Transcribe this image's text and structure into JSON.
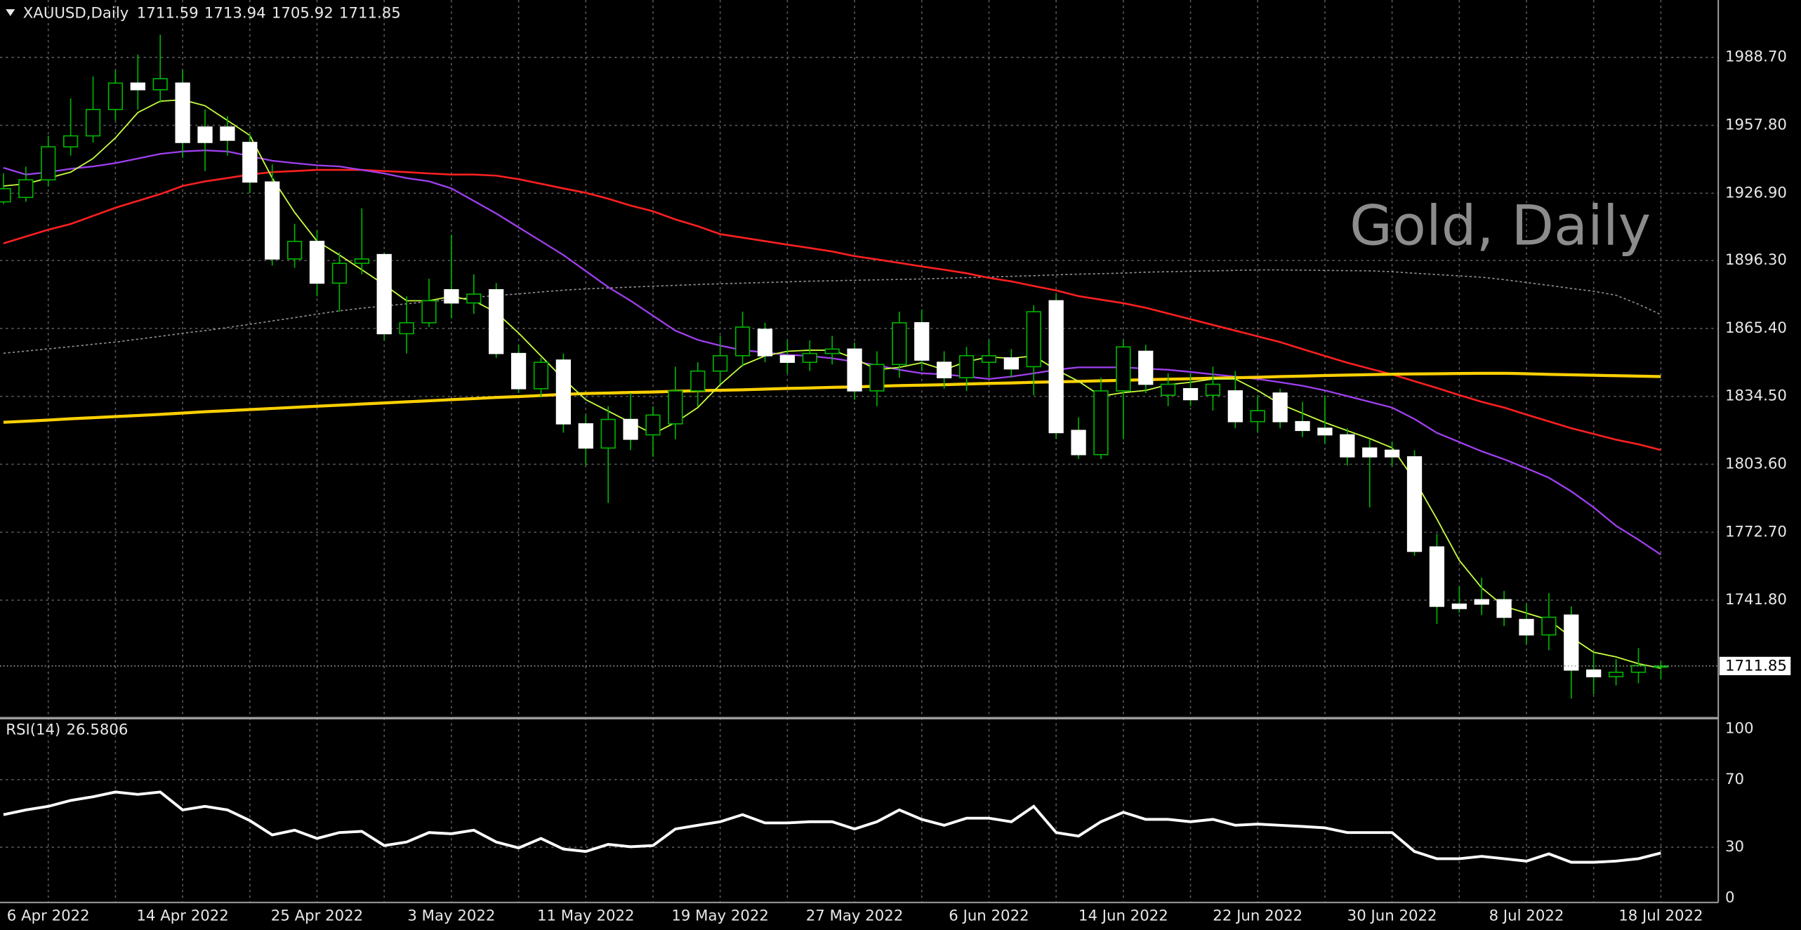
{
  "chart_data": [
    {
      "type": "candlestick",
      "symbol_label": "XAUUSD,Daily",
      "watermark": "Gold, Daily",
      "categories": [
        null,
        null,
        "6 Apr 2022",
        null,
        null,
        null,
        null,
        null,
        "14 Apr 2022",
        null,
        null,
        null,
        null,
        null,
        "25 Apr 2022",
        null,
        null,
        null,
        null,
        null,
        "3 May 2022",
        null,
        null,
        null,
        null,
        null,
        "11 May 2022",
        null,
        null,
        null,
        null,
        null,
        "19 May 2022",
        null,
        null,
        null,
        null,
        null,
        "27 May 2022",
        null,
        null,
        null,
        null,
        null,
        "6 Jun 2022",
        null,
        null,
        null,
        null,
        null,
        "14 Jun 2022",
        null,
        null,
        null,
        null,
        null,
        "22 Jun 2022",
        null,
        null,
        null,
        null,
        null,
        "30 Jun 2022",
        null,
        null,
        null,
        null,
        null,
        "8 Jul 2022",
        null,
        null,
        null,
        null,
        null,
        "18 Jul 2022"
      ],
      "open": [
        1923,
        1925,
        1933,
        1948,
        1953,
        1965,
        1977,
        1974,
        1977,
        1957,
        1957,
        1950,
        1932,
        1897,
        1905,
        1886,
        1895,
        1899,
        1863,
        1868,
        1883,
        1877,
        1883,
        1854,
        1838,
        1851,
        1822,
        1811,
        1824,
        1817,
        1822,
        1837,
        1846,
        1853,
        1865,
        1853,
        1850,
        1854,
        1856,
        1837,
        1849,
        1868,
        1850,
        1843,
        1850,
        1852,
        1848,
        1878,
        1819,
        1808,
        1837,
        1855,
        1835,
        1838,
        1835,
        1837,
        1823,
        1836,
        1823,
        1820,
        1817,
        1811,
        1810,
        1807,
        1766,
        1740,
        1742,
        1742,
        1733,
        1726,
        1735,
        1710,
        1707,
        1709,
        1711.59
      ],
      "high": [
        1936,
        1939,
        1953,
        1970,
        1980,
        1983,
        1990,
        1999,
        1983,
        1965,
        1962,
        1954,
        1940,
        1913,
        1910,
        1900,
        1920,
        1900,
        1880,
        1888,
        1908,
        1890,
        1886,
        1858,
        1852,
        1854,
        1826,
        1830,
        1836,
        1830,
        1848,
        1850,
        1862,
        1873,
        1868,
        1860,
        1860,
        1862,
        1859,
        1855,
        1873,
        1874,
        1855,
        1857,
        1860,
        1856,
        1876,
        1881,
        1825,
        1843,
        1860,
        1858,
        1845,
        1845,
        1848,
        1846,
        1835,
        1838,
        1832,
        1835,
        1820,
        1815,
        1814,
        1810,
        1772,
        1748,
        1752,
        1746,
        1740,
        1745,
        1739,
        1718,
        1715,
        1720,
        1713.94
      ],
      "low": [
        1922,
        1923,
        1930,
        1944,
        1950,
        1960,
        1965,
        1968,
        1943,
        1937,
        1944,
        1927,
        1894,
        1893,
        1880,
        1873,
        1890,
        1860,
        1854,
        1866,
        1870,
        1872,
        1852,
        1836,
        1834,
        1818,
        1803,
        1786,
        1810,
        1807,
        1815,
        1830,
        1840,
        1848,
        1850,
        1845,
        1846,
        1849,
        1833,
        1830,
        1843,
        1846,
        1838,
        1837,
        1843,
        1843,
        1835,
        1815,
        1806,
        1806,
        1815,
        1836,
        1830,
        1830,
        1828,
        1820,
        1818,
        1820,
        1816,
        1813,
        1803,
        1784,
        1803,
        1762,
        1731,
        1736,
        1735,
        1730,
        1722,
        1719,
        1697,
        1699,
        1703,
        1704,
        1705.92
      ],
      "close": [
        1929,
        1933,
        1948,
        1953,
        1965,
        1977,
        1974,
        1979,
        1950,
        1950,
        1951,
        1932,
        1897,
        1905,
        1886,
        1895,
        1897,
        1863,
        1868,
        1878,
        1877,
        1881,
        1854,
        1838,
        1850,
        1822,
        1811,
        1824,
        1815,
        1826,
        1837,
        1846,
        1853,
        1866,
        1853,
        1850,
        1854,
        1856,
        1837,
        1849,
        1868,
        1851,
        1843,
        1853,
        1853,
        1847,
        1873,
        1818,
        1808,
        1837,
        1857,
        1840,
        1840,
        1833,
        1840,
        1823,
        1828,
        1823,
        1819,
        1817,
        1807,
        1807,
        1807,
        1764,
        1739,
        1738,
        1740,
        1734,
        1726,
        1734,
        1710,
        1707,
        1709,
        1712,
        1711.85
      ],
      "up_color": "#00b400",
      "down_color": "#ffffff",
      "wick_color": "#00b400",
      "overlays": [
        {
          "color": "#909090",
          "width": 1,
          "style": "dotted",
          "values": [
            1854.1,
            1855.1,
            1856.1,
            1857.1,
            1858.2,
            1859.2,
            1860.5,
            1861.8,
            1863.2,
            1864.4,
            1865.8,
            1867.3,
            1868.8,
            1870.3,
            1871.9,
            1873.4,
            1874.6,
            1875.6,
            1876.6,
            1877.6,
            1878.6,
            1879.5,
            1880.4,
            1881.1,
            1882,
            1882.8,
            1883.4,
            1883.8,
            1884.2,
            1884.6,
            1885,
            1885.4,
            1885.7,
            1886,
            1886.3,
            1886.6,
            1886.9,
            1887.1,
            1887.3,
            1887.5,
            1887.7,
            1887.9,
            1888.2,
            1888.5,
            1888.8,
            1889.1,
            1889.4,
            1889.8,
            1890.1,
            1890.3,
            1890.6,
            1891,
            1891.2,
            1891.4,
            1891.6,
            1891.8,
            1892,
            1892,
            1891.9,
            1891.8,
            1891.7,
            1891.6,
            1891.2,
            1890.5,
            1889.9,
            1889.3,
            1888.7,
            1887.6,
            1886.3,
            1885,
            1883.6,
            1882.3,
            1880.5,
            1876.4,
            1871.7
          ]
        },
        {
          "color": "#ff2020",
          "width": 1.6,
          "style": "solid",
          "values": [
            1904.1,
            1907.2,
            1910.3,
            1912.9,
            1916.6,
            1920.3,
            1923.4,
            1926.5,
            1930.2,
            1932.3,
            1933.8,
            1935.4,
            1936.5,
            1937,
            1937.5,
            1937.5,
            1937.5,
            1937,
            1936.5,
            1935.9,
            1935.4,
            1935.4,
            1934.9,
            1933.3,
            1931.2,
            1929.1,
            1927.1,
            1924.4,
            1921.3,
            1918.7,
            1915,
            1911.9,
            1908.3,
            1906.7,
            1905.1,
            1903.5,
            1902,
            1900.4,
            1898.3,
            1896.8,
            1895.2,
            1893.6,
            1892.1,
            1890.5,
            1888.4,
            1886.8,
            1884.7,
            1882.7,
            1880.1,
            1878.5,
            1876.9,
            1874.8,
            1872.2,
            1869.6,
            1867,
            1864.4,
            1861.8,
            1859.2,
            1856,
            1852.9,
            1849.8,
            1847.1,
            1844.5,
            1841.4,
            1838.3,
            1835.1,
            1832,
            1829.4,
            1826.2,
            1823.1,
            1820,
            1817.4,
            1814.8,
            1812.7,
            1810.1
          ]
        },
        {
          "color": "#a040f0",
          "width": 1.4,
          "style": "solid",
          "values": [
            1938.5,
            1935.4,
            1936.5,
            1938,
            1939.1,
            1940.6,
            1942.7,
            1944.8,
            1945.9,
            1946.4,
            1945.9,
            1943.8,
            1941.7,
            1940.6,
            1939.6,
            1939.1,
            1937.5,
            1935.9,
            1933.8,
            1932.3,
            1929.1,
            1923.4,
            1917.7,
            1911.4,
            1905.1,
            1898.8,
            1891.5,
            1884.2,
            1878,
            1871.2,
            1864.4,
            1860.2,
            1857.6,
            1855.5,
            1854.5,
            1853.4,
            1852.9,
            1851.8,
            1850.3,
            1848.7,
            1846.6,
            1845,
            1844.5,
            1843.5,
            1842.4,
            1843.5,
            1845,
            1846.6,
            1847.7,
            1847.7,
            1847.7,
            1847.1,
            1846.6,
            1845.6,
            1844.5,
            1843.5,
            1842.4,
            1840.9,
            1839.3,
            1837.2,
            1834.6,
            1832,
            1829.4,
            1824.2,
            1817.9,
            1813.7,
            1809.5,
            1805.9,
            1801.8,
            1797.5,
            1791.3,
            1784,
            1775.6,
            1769.3,
            1762.5
          ]
        },
        {
          "color": "#ffd000",
          "width": 2.6,
          "style": "solid",
          "values": [
            1822.7,
            1823.2,
            1823.7,
            1824.3,
            1824.8,
            1825.3,
            1825.8,
            1826.3,
            1826.9,
            1827.5,
            1828,
            1828.5,
            1829,
            1829.5,
            1830,
            1830.5,
            1831,
            1831.5,
            1832,
            1832.5,
            1833,
            1833.5,
            1834,
            1834.4,
            1834.9,
            1835.4,
            1835.8,
            1836,
            1836.3,
            1836.5,
            1836.8,
            1837.1,
            1837.3,
            1837.5,
            1837.8,
            1838.1,
            1838.3,
            1838.6,
            1838.8,
            1839.1,
            1839.4,
            1839.6,
            1839.8,
            1840.1,
            1840.4,
            1840.6,
            1840.9,
            1841.1,
            1841.3,
            1841.6,
            1841.8,
            1842.1,
            1842.3,
            1842.5,
            1842.8,
            1843,
            1843.2,
            1843.5,
            1843.7,
            1844,
            1844.2,
            1844.4,
            1844.6,
            1844.7,
            1844.8,
            1844.9,
            1845,
            1845,
            1844.8,
            1844.5,
            1844.3,
            1844.1,
            1843.9,
            1843.7,
            1843.5
          ]
        },
        {
          "color": "#c8ff40",
          "width": 1.1,
          "style": "solid",
          "values": [
            1930.2,
            1931.2,
            1933.8,
            1936.5,
            1942.7,
            1952.1,
            1963.6,
            1968.8,
            1969.4,
            1966.7,
            1960,
            1953.2,
            1933.8,
            1918.2,
            1905.1,
            1898.8,
            1892.1,
            1885.3,
            1878,
            1878,
            1880,
            1878,
            1872.7,
            1863.3,
            1852.9,
            1842.4,
            1833,
            1827.8,
            1822.6,
            1817.4,
            1822.6,
            1829.4,
            1839.8,
            1848.7,
            1852.9,
            1855,
            1855.5,
            1855.5,
            1851.8,
            1846.6,
            1847.7,
            1849.8,
            1846.6,
            1850.3,
            1852.4,
            1851.8,
            1852.9,
            1846.6,
            1841.4,
            1834.6,
            1836.2,
            1837.2,
            1839.8,
            1840.9,
            1842.4,
            1842.4,
            1837.2,
            1831,
            1826.8,
            1822.6,
            1818.9,
            1815.3,
            1811.1,
            1796.5,
            1778.7,
            1759.9,
            1747.4,
            1739,
            1735.9,
            1732.8,
            1724.9,
            1718.1,
            1716,
            1712.9,
            1710.8
          ]
        }
      ],
      "ylim": [
        1688.9,
        2014.8
      ],
      "yticks": [
        {
          "value": 1988.7,
          "label": "1988.70"
        },
        {
          "value": 1957.8,
          "label": "1957.80"
        },
        {
          "value": 1926.9,
          "label": "1926.90"
        },
        {
          "value": 1896.3,
          "label": "1896.30"
        },
        {
          "value": 1865.4,
          "label": "1865.40"
        },
        {
          "value": 1834.5,
          "label": "1834.50"
        },
        {
          "value": 1803.6,
          "label": "1803.60"
        },
        {
          "value": 1772.7,
          "label": "1772.70"
        },
        {
          "value": 1741.8,
          "label": "1741.80"
        }
      ],
      "grid": true
    },
    {
      "type": "line",
      "title": "RSI(14)",
      "color": "#ffffff",
      "values": [
        49.3,
        52.1,
        54.2,
        57.7,
        59.9,
        62.7,
        61.3,
        62.7,
        52.1,
        54.2,
        52.1,
        45.8,
        37.3,
        40.1,
        35.2,
        38.7,
        39.4,
        31,
        33.1,
        38.7,
        38,
        40.1,
        33.1,
        29.6,
        35.2,
        28.9,
        27.5,
        31.7,
        30.3,
        31,
        40.8,
        43,
        45.1,
        49.3,
        44.4,
        44.4,
        45.1,
        45.1,
        40.8,
        45.1,
        52.1,
        46.5,
        43,
        47.2,
        47.2,
        45.1,
        54.2,
        38.7,
        36.6,
        45.1,
        50.7,
        46.5,
        46.5,
        45.1,
        46.5,
        43,
        43.7,
        43,
        42.3,
        41.5,
        38.7,
        38.7,
        38.7,
        27.5,
        23.2,
        23.2,
        24.6,
        23.2,
        21.8,
        26.1,
        21.1,
        21.1,
        21.8,
        23.2,
        26.5806
      ],
      "ylim": [
        -2,
        105.4
      ],
      "yticks": [
        100,
        70,
        30,
        0
      ],
      "grid": true
    }
  ]
}
